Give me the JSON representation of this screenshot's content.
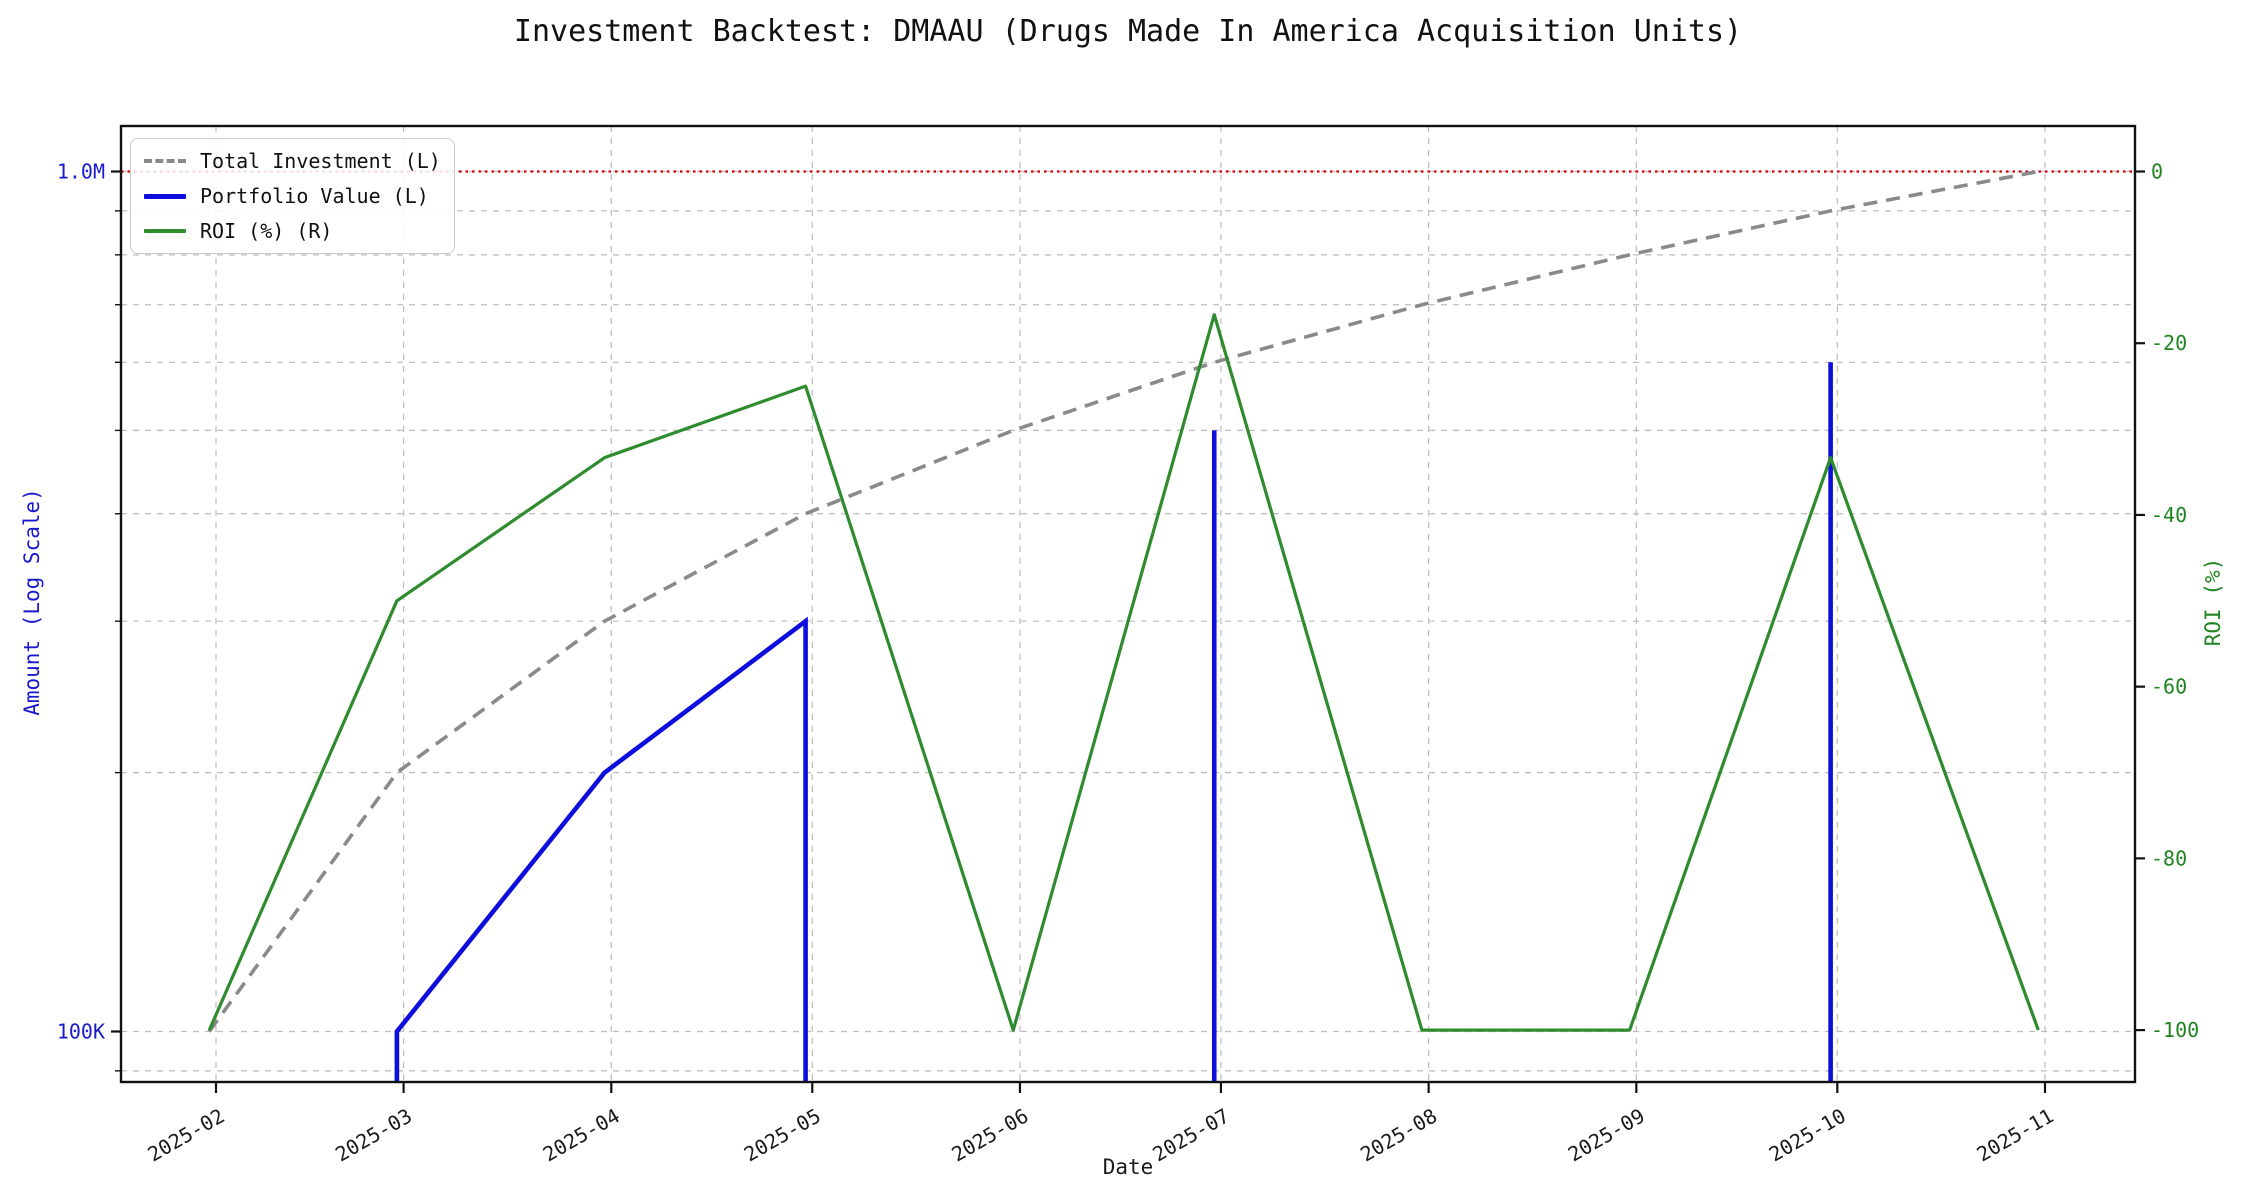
{
  "header": {
    "title": "Investment Backtest: DMAAU (Drugs Made In America Acquisition Units)"
  },
  "legend": {
    "items": [
      {
        "label": "Total Investment (L)",
        "series": "total_investment"
      },
      {
        "label": "Portfolio Value (L)",
        "series": "portfolio_value"
      },
      {
        "label": "ROI (%) (R)",
        "series": "roi_pct"
      }
    ]
  },
  "axes": {
    "x": {
      "label": "Date",
      "ticks": [
        {
          "date": "2025-02-01",
          "label": "2025-02"
        },
        {
          "date": "2025-03-01",
          "label": "2025-03"
        },
        {
          "date": "2025-04-01",
          "label": "2025-04"
        },
        {
          "date": "2025-05-01",
          "label": "2025-05"
        },
        {
          "date": "2025-06-01",
          "label": "2025-06"
        },
        {
          "date": "2025-07-01",
          "label": "2025-07"
        },
        {
          "date": "2025-08-01",
          "label": "2025-08"
        },
        {
          "date": "2025-09-01",
          "label": "2025-09"
        },
        {
          "date": "2025-10-01",
          "label": "2025-10"
        },
        {
          "date": "2025-11-01",
          "label": "2025-11"
        }
      ]
    },
    "left": {
      "label": "Amount (Log Scale)",
      "scale": "log",
      "color": "#1a1acd",
      "major_ticks": [
        {
          "value": 1000000,
          "label": "1.0M"
        },
        {
          "value": 100000,
          "label": "100K"
        }
      ],
      "minor_ticks": [
        900000,
        800000,
        700000,
        600000,
        500000,
        400000,
        300000,
        200000,
        90000
      ]
    },
    "right": {
      "label": "ROI (%)",
      "color": "#1e8420",
      "ticks": [
        0,
        -20,
        -40,
        -60,
        -80,
        -100
      ]
    }
  },
  "chart_data": {
    "type": "line",
    "title": "Investment Backtest: DMAAU (Drugs Made In America Acquisition Units)",
    "xlabel": "Date",
    "ylabel_left": "Amount (Log Scale)",
    "ylabel_right": "ROI (%)",
    "x": [
      "2025-01-31",
      "2025-02-28",
      "2025-03-31",
      "2025-04-30",
      "2025-05-31",
      "2025-06-30",
      "2025-07-31",
      "2025-08-31",
      "2025-09-30",
      "2025-10-31"
    ],
    "series": [
      {
        "name": "Total Investment (L)",
        "axis": "left",
        "color": "#8a8a8a",
        "line_style": "dashed",
        "values": [
          100000,
          200000,
          300000,
          400000,
          500000,
          600000,
          700000,
          800000,
          900000,
          1000000
        ]
      },
      {
        "name": "Portfolio Value (L)",
        "axis": "left",
        "color": "#0d0dde",
        "line_style": "solid",
        "zero_clipped": true,
        "values": [
          0,
          100000,
          200000,
          300000,
          0,
          500000,
          0,
          0,
          600000,
          0
        ]
      },
      {
        "name": "ROI (%) (R)",
        "axis": "right",
        "color": "#2e8b2e",
        "line_style": "solid",
        "values": [
          -100,
          -50,
          -33.33,
          -25,
          -100,
          -16.67,
          -100,
          -100,
          -33.33,
          -100
        ]
      }
    ],
    "left_axis_range": [
      89000,
      1150000
    ],
    "right_axis_range": [
      -106,
      5
    ],
    "reference_line": {
      "axis": "right",
      "value": 0,
      "color": "#d40000",
      "style": "dotted"
    },
    "grid": true,
    "legend_position": "upper left"
  }
}
